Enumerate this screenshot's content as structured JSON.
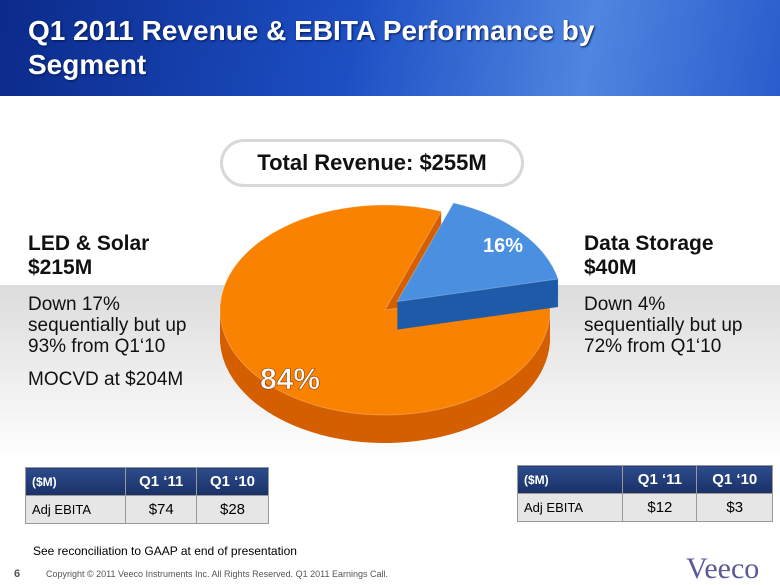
{
  "header": {
    "title": "Q1 2011 Revenue & EBITA Performance by Segment"
  },
  "chart_data": {
    "type": "pie",
    "title": "Total Revenue: $255M",
    "values": [
      84,
      16
    ],
    "value_labels": [
      "84%",
      "16%"
    ],
    "colors": [
      "#f98200",
      "#4a8fe0"
    ],
    "side_colors": [
      "#d45f00",
      "#1f5aa8"
    ]
  },
  "segments": [
    {
      "name": "LED & Solar",
      "revenue": "$215M",
      "notes": [
        "Down 17% sequentially but up 93% from Q1‘10",
        "MOCVD at $204M"
      ],
      "table": {
        "columns": [
          "($M)",
          "Q1 ‘11",
          "Q1 ‘10"
        ],
        "rows": [
          [
            "Adj EBITA",
            "$74",
            "$28"
          ]
        ]
      }
    },
    {
      "name": "Data Storage",
      "revenue": "$40M",
      "notes": [
        "Down 4% sequentially but up 72% from Q1‘10"
      ],
      "table": {
        "columns": [
          "($M)",
          "Q1 ‘11",
          "Q1 ‘10"
        ],
        "rows": [
          [
            "Adj EBITA",
            "$12",
            "$3"
          ]
        ]
      }
    }
  ],
  "footnote": "See reconciliation to GAAP at end of presentation",
  "footer": {
    "page": "6",
    "copyright": "Copyright © 2011 Veeco Instruments Inc. All Rights Reserved. Q1 2011 Earnings Call."
  },
  "logo": "Veeco"
}
